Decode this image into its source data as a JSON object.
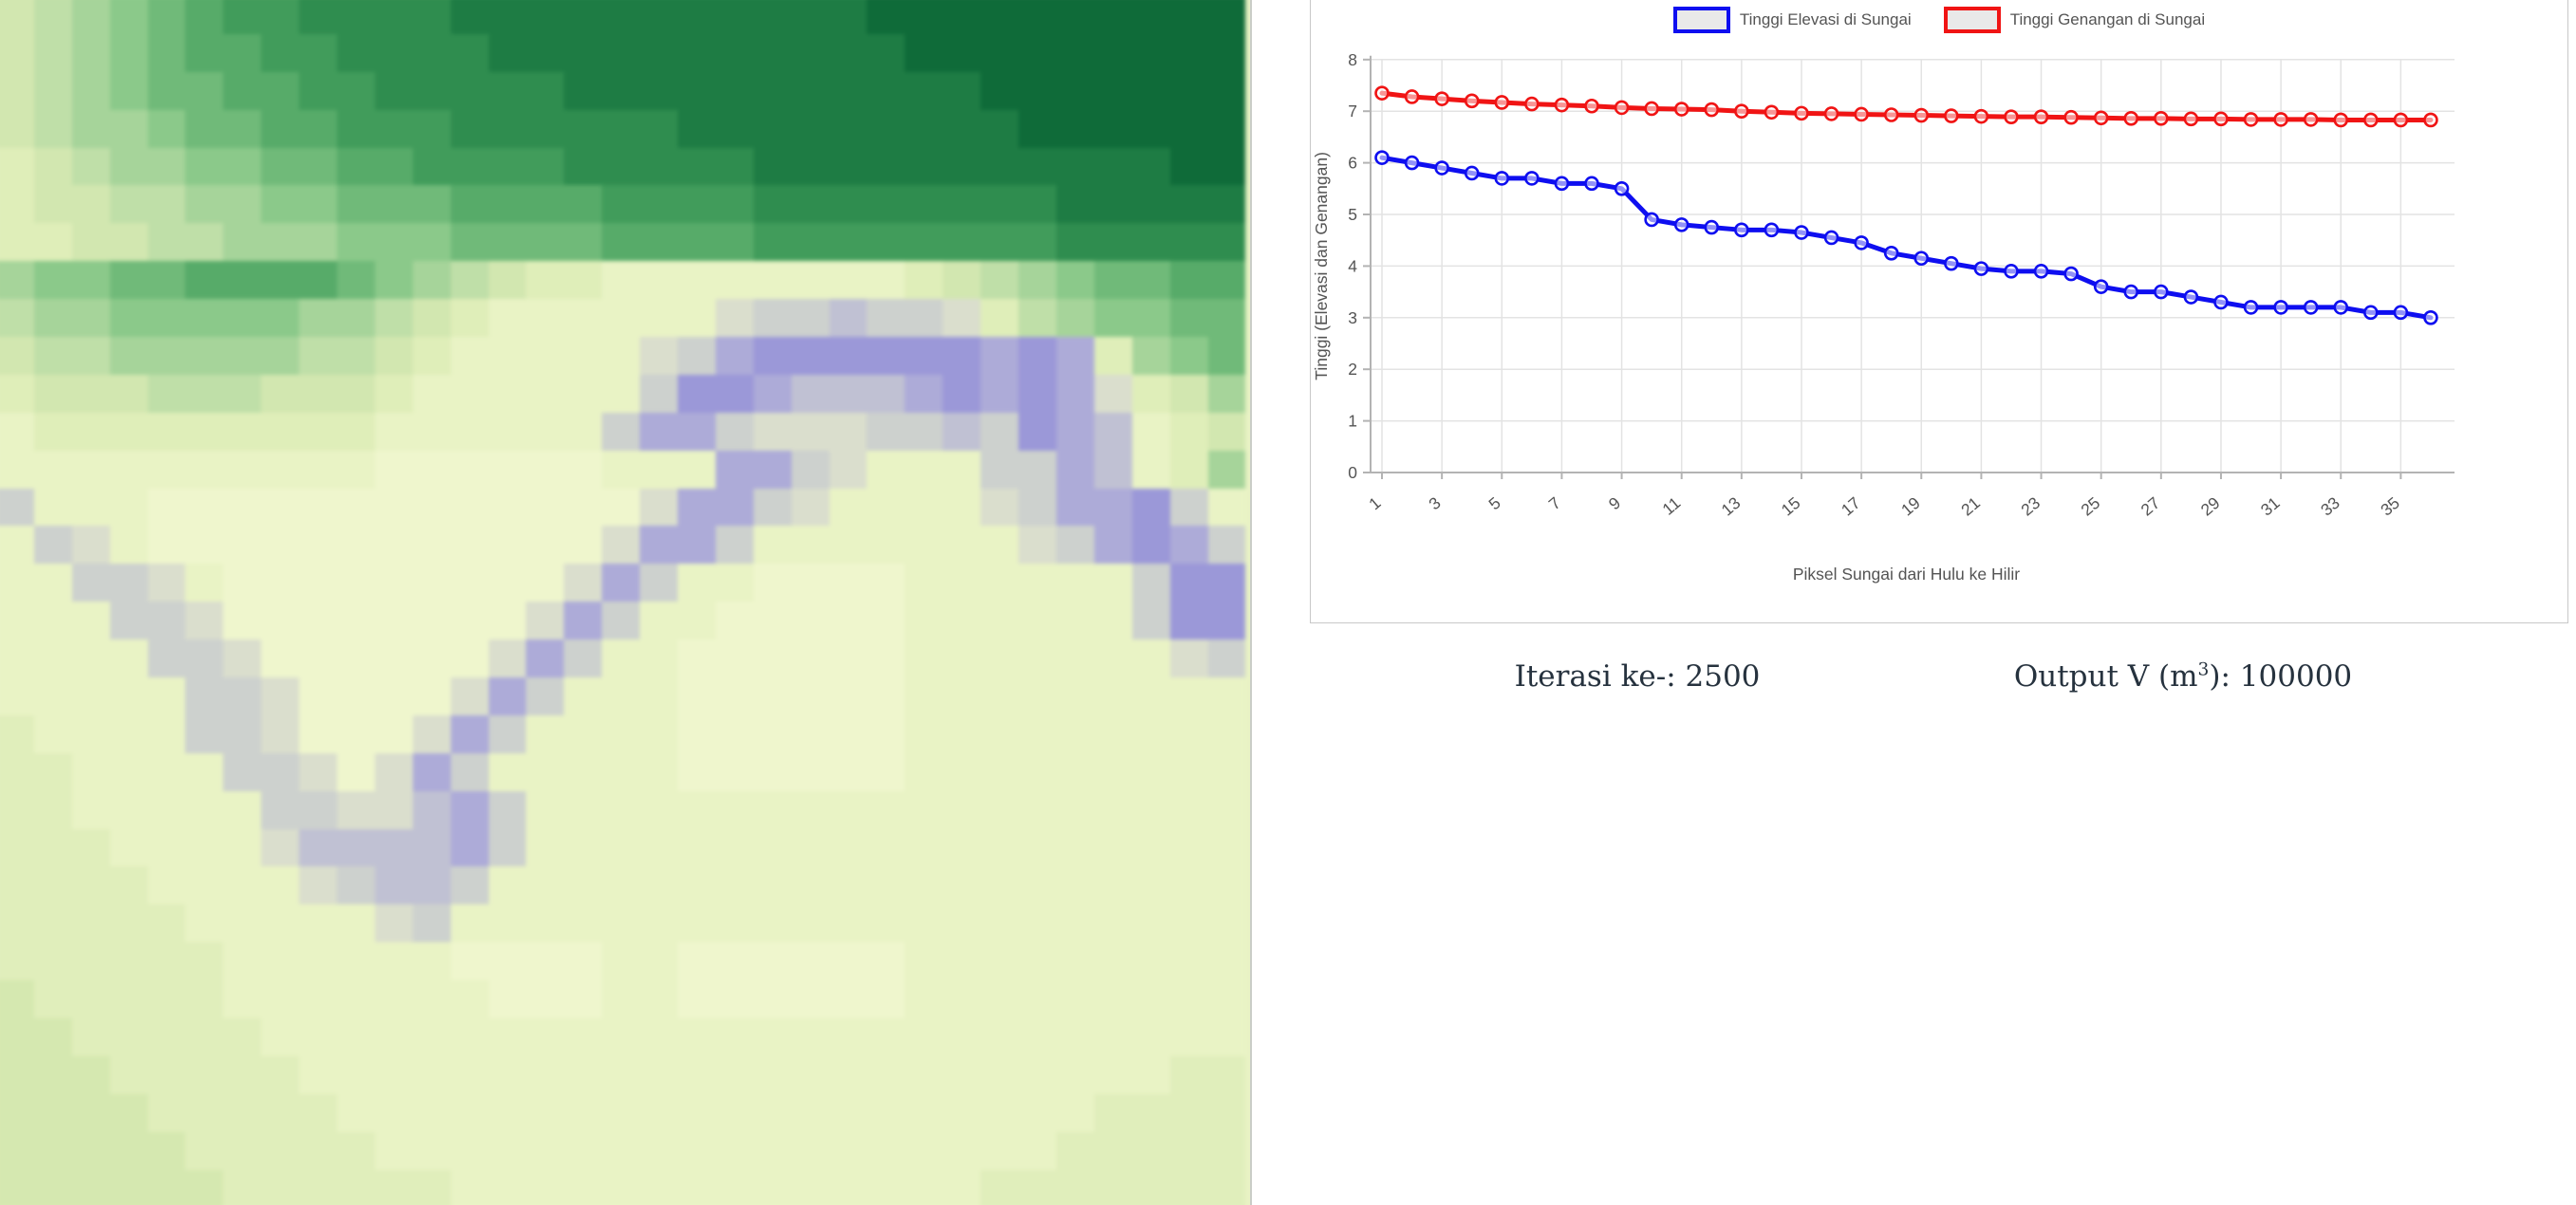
{
  "map": {
    "description": "pixelated-elevation-raster-with-meandering-river",
    "palette": {
      "A": "#0f6b39",
      "B": "#1e7c44",
      "C": "#2f8d4f",
      "D": "#419c5b",
      "E": "#57ab69",
      "F": "#70ba79",
      "G": "#8bc98a",
      "H": "#a6d49a",
      "I": "#bfdfa8",
      "J": "#d2e7b0",
      "K": "#dfeeb9",
      "L": "#e9f3c5",
      "M": "#eff6cd",
      "N": "#e0eebb",
      "O": "#d5e8b0",
      "P": "#9b98d8",
      "Q": "#adabd8",
      "R": "#c0c1d3",
      "S": "#cdd1ce",
      "T": "#dadecd"
    },
    "rows": [
      "JIHGFEDDCCCCBBBBBBBBBBBAAAAAAAAAA",
      "JIHGFEEDDCCCCBBBBBBBBBBBAAAAAAAAA",
      "JIHGFFEEDDCCCCCBBBBBBBBBBBAAAAAAA",
      "JIHHGFFEEDDDCCCCCCBBBBBBBBBAAAAAA",
      "KJIHHGGFFEEDDDDCCCCCBBBBBBBBBBBAA",
      "KJJIIHHGGFFFEEEEDDDDCCCCCCCCBBBBB",
      "KKJJIIHHHGGGFFFFEEEEDDDDDDDDCCCCC",
      "HGGFFEEEEFGHIJKKLLLLLLLLKJIHGFFEE",
      "IHHGGGGGHHIJKLLLLLLTSSRSSTKIHGGFF",
      "JIIHHHHHIIJKLLLLLTSQPPPPPPQPQKHGF",
      "KJJJIIIJJJKLLLLLLSPPQRRRQPQPQTKJH",
      "LKKKKKKKKKLLLLLLSQQSTTTSSRSPQRLKJ",
      "LLLLLLLLLLMMMMMMLLLQQSTLLLSSQRLKH",
      "SLLLMMMMMMMMMMMMMTQQSTLLLLTSQQPSL",
      "LSTLMMMMMMMMMMMMTQQSLLLLLLLTSQPQS",
      "LLSSTLMMMMMMMMMTQSLLMMMMLLLLLLSPP",
      "LLLSSTMMMMMMMMTQSLLMMMMMLLLLLLSPP",
      "LLLLSSTMMMMMMTQSLLMMMMMMLLLLLLLTS",
      "LLLLLSSTMMMMTQSLLLMMMMMMLLLLLLLLL",
      "NLLLLSSTMMMTQSLLLLMMMMMMLLLLLLLLL",
      "NNLLLLSSTMTQSLLLLLMMMMMMLLLLLLLLL",
      "NNLLLLLSSTTRQSLLLLLLLLLLLLLLLLLLL",
      "NNNLLLLTRRRRQSLLLLLLLLLLLLLLLLLLL",
      "NNNNLLLLTSRRSLLLLLLLLLLLLLLLLLLLL",
      "NNNNNLLLLLTSLLLLLLLLLLLLLLLLLLLLL",
      "NNNNNNLLLLLLMMMMLLMMMMMMLLLLLLLLL",
      "ONNNNNLLLLLLLMMMLLMMMMMMLLLLLLLLL",
      "OONNNNNLLLLLLLLLLLLLLLLLLLLLLLLLL",
      "OOONNNNNLLLLLLLLLLLLLLLLLLLLLLLNN",
      "OOOONNNNNLLLLLLLLLLLLLLLLLLLLNNNN",
      "OOOOONNNNNLLLLLLLLLLLLLLLLLLNNNNN",
      "OOOOOONNNNNNLLLLLLLLLLLLLLNNNNNNN"
    ]
  },
  "chart": {
    "legend": [
      {
        "label": "Tinggi Elevasi di Sungai",
        "color": "#0e0ef0"
      },
      {
        "label": "Tinggi Genangan di Sungai",
        "color": "#f01414"
      }
    ],
    "ylabel": "Tinggi (Elevasi dan Genangan)",
    "xlabel": "Piksel Sungai dari Hulu ke Hilir",
    "yticks": [
      0,
      1,
      2,
      3,
      4,
      5,
      6,
      7,
      8
    ],
    "xticks": [
      1,
      3,
      5,
      7,
      9,
      11,
      13,
      15,
      17,
      19,
      21,
      23,
      25,
      27,
      29,
      31,
      33,
      35
    ],
    "colors": {
      "grid": "#e3e3e3",
      "axis": "#b3b3b3",
      "tick_text": "#545454",
      "swatch_fill": "#e9e9e9"
    }
  },
  "chart_data": {
    "type": "line",
    "x": [
      1,
      2,
      3,
      4,
      5,
      6,
      7,
      8,
      9,
      10,
      11,
      12,
      13,
      14,
      15,
      16,
      17,
      18,
      19,
      20,
      21,
      22,
      23,
      24,
      25,
      26,
      27,
      28,
      29,
      30,
      31,
      32,
      33,
      34,
      35,
      36
    ],
    "series": [
      {
        "name": "Tinggi Elevasi di Sungai",
        "color": "#0e0ef0",
        "values": [
          6.1,
          6.0,
          5.9,
          5.8,
          5.7,
          5.7,
          5.6,
          5.6,
          5.5,
          4.9,
          4.8,
          4.75,
          4.7,
          4.7,
          4.65,
          4.55,
          4.45,
          4.25,
          4.15,
          4.05,
          3.95,
          3.9,
          3.9,
          3.85,
          3.6,
          3.5,
          3.5,
          3.4,
          3.3,
          3.2,
          3.2,
          3.2,
          3.2,
          3.1,
          3.1,
          3.0
        ]
      },
      {
        "name": "Tinggi Genangan di Sungai",
        "color": "#f01414",
        "values": [
          7.35,
          7.28,
          7.24,
          7.2,
          7.17,
          7.14,
          7.12,
          7.1,
          7.07,
          7.05,
          7.04,
          7.03,
          7.0,
          6.98,
          6.96,
          6.95,
          6.94,
          6.93,
          6.92,
          6.91,
          6.9,
          6.89,
          6.89,
          6.88,
          6.87,
          6.86,
          6.86,
          6.85,
          6.85,
          6.84,
          6.84,
          6.84,
          6.83,
          6.83,
          6.83,
          6.83
        ]
      }
    ],
    "title": "",
    "xlabel": "Piksel Sungai dari Hulu ke Hilir",
    "ylabel": "Tinggi (Elevasi dan Genangan)",
    "ylim": [
      0,
      8
    ],
    "grid": true,
    "legend_position": "top-center"
  },
  "stats": {
    "iterasi_label": "Iterasi ke-:",
    "iterasi_value": "2500",
    "output_prefix": "Output V (m",
    "output_sup": "3",
    "output_colon": "):",
    "output_value": "100000"
  }
}
